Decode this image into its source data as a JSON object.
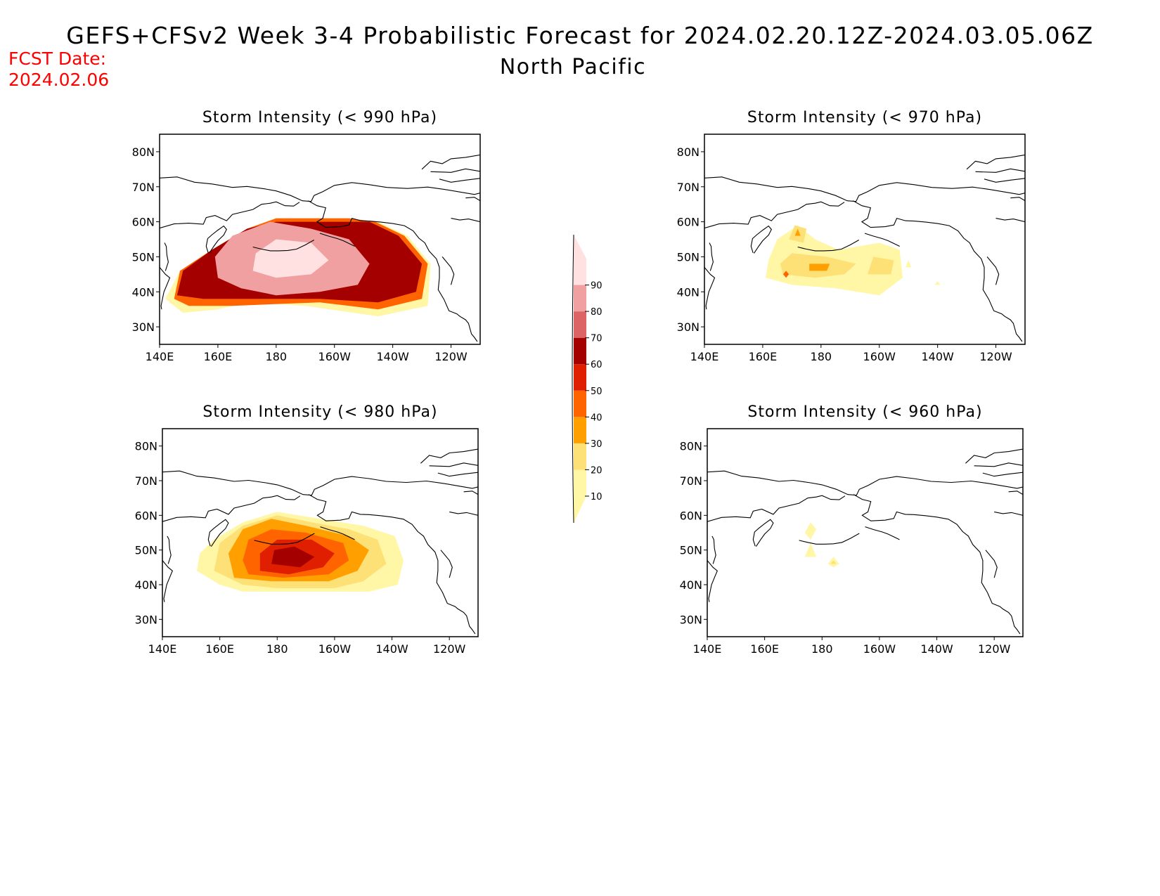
{
  "header": {
    "title": "GEFS+CFSv2 Week 3-4 Probabilistic Forecast for 2024.02.20.12Z-2024.03.05.06Z",
    "subtitle": "North Pacific",
    "fcst_label": "FCST Date:",
    "fcst_date": "2024.02.06"
  },
  "colorbar": {
    "levels": [
      "10",
      "20",
      "30",
      "40",
      "50",
      "60",
      "70",
      "80",
      "90"
    ],
    "colors": [
      "#fff6a6",
      "#fde076",
      "#ffa000",
      "#ff6400",
      "#e01e00",
      "#a50000",
      "#dc6464",
      "#f0a0a0",
      "#ffe1e1"
    ]
  },
  "panels": [
    {
      "id": "p990",
      "title": "Storm Intensity (< 990 hPa)",
      "lat_labels": [
        "80N",
        "70N",
        "60N",
        "50N",
        "40N",
        "30N"
      ],
      "lon_labels": [
        "140E",
        "160E",
        "180",
        "160W",
        "140W",
        "120W"
      ],
      "probability_fields": [
        {
          "level": 0,
          "polygons": [
            [
              [
                142,
                38
              ],
              [
                148,
                34
              ],
              [
                160,
                35
              ],
              [
                170,
                37
              ],
              [
                190,
                36
              ],
              [
                215,
                33
              ],
              [
                232,
                36
              ],
              [
                233,
                48
              ],
              [
                225,
                56
              ],
              [
                215,
                60
              ],
              [
                200,
                60
              ],
              [
                180,
                61
              ],
              [
                170,
                58
              ],
              [
                158,
                52
              ],
              [
                147,
                46
              ]
            ]
          ]
        },
        {
          "level": 3,
          "polygons": [
            [
              [
                145,
                38
              ],
              [
                150,
                36
              ],
              [
                165,
                36
              ],
              [
                195,
                37
              ],
              [
                215,
                35
              ],
              [
                230,
                38
              ],
              [
                232,
                48
              ],
              [
                224,
                56
              ],
              [
                214,
                60
              ],
              [
                205,
                61
              ],
              [
                180,
                61
              ],
              [
                170,
                58
              ],
              [
                158,
                52
              ],
              [
                147,
                46
              ]
            ]
          ]
        },
        {
          "level": 5,
          "polygons": [
            [
              [
                146,
                39
              ],
              [
                155,
                38
              ],
              [
                170,
                38
              ],
              [
                195,
                38
              ],
              [
                215,
                37
              ],
              [
                228,
                40
              ],
              [
                230,
                48
              ],
              [
                222,
                56
              ],
              [
                212,
                60
              ],
              [
                200,
                60
              ],
              [
                180,
                60
              ],
              [
                170,
                58
              ],
              [
                158,
                52
              ],
              [
                148,
                46
              ]
            ]
          ]
        },
        {
          "level": 7,
          "polygons": [
            [
              [
                160,
                44
              ],
              [
                168,
                41
              ],
              [
                180,
                39
              ],
              [
                195,
                40
              ],
              [
                208,
                42
              ],
              [
                212,
                48
              ],
              [
                205,
                55
              ],
              [
                192,
                58
              ],
              [
                178,
                60
              ],
              [
                165,
                56
              ],
              [
                159,
                50
              ]
            ]
          ]
        },
        {
          "level": 8,
          "polygons": [
            [
              [
                172,
                46
              ],
              [
                180,
                44
              ],
              [
                192,
                45
              ],
              [
                198,
                49
              ],
              [
                192,
                54
              ],
              [
                180,
                55
              ],
              [
                173,
                51
              ]
            ]
          ]
        }
      ]
    },
    {
      "id": "p970",
      "title": "Storm Intensity (< 970 hPa)",
      "lat_labels": [
        "80N",
        "70N",
        "60N",
        "50N",
        "40N",
        "30N"
      ],
      "lon_labels": [
        "140E",
        "160E",
        "180",
        "160W",
        "140W",
        "120W"
      ],
      "probability_fields": [
        {
          "level": 0,
          "polygons": [
            [
              [
                161,
                44
              ],
              [
                170,
                42
              ],
              [
                185,
                41
              ],
              [
                200,
                39
              ],
              [
                208,
                44
              ],
              [
                207,
                52
              ],
              [
                200,
                54
              ],
              [
                186,
                52
              ],
              [
                178,
                55
              ],
              [
                172,
                59
              ],
              [
                165,
                55
              ],
              [
                162,
                49
              ]
            ],
            [
              [
                209,
                47
              ],
              [
                210,
                49
              ],
              [
                211,
                47
              ]
            ],
            [
              [
                219,
                42
              ],
              [
                220,
                43
              ],
              [
                221,
                42
              ]
            ]
          ]
        },
        {
          "level": 1,
          "polygons": [
            [
              [
                167,
                45
              ],
              [
                178,
                44
              ],
              [
                188,
                45
              ],
              [
                192,
                48
              ],
              [
                182,
                50
              ],
              [
                170,
                51
              ],
              [
                166,
                48
              ]
            ],
            [
              [
                196,
                45
              ],
              [
                204,
                45
              ],
              [
                205,
                49
              ],
              [
                198,
                50
              ]
            ],
            [
              [
                169,
                55
              ],
              [
                174,
                54
              ],
              [
                175,
                58
              ],
              [
                171,
                59
              ]
            ]
          ]
        },
        {
          "level": 2,
          "polygons": [
            [
              [
                176,
                46
              ],
              [
                182,
                46
              ],
              [
                183,
                48
              ],
              [
                176,
                48
              ]
            ],
            [
              [
                171,
                56
              ],
              [
                173,
                56
              ],
              [
                172,
                58
              ]
            ]
          ]
        },
        {
          "level": 3,
          "polygons": [
            [
              [
                168,
                44
              ],
              [
                169,
                45
              ],
              [
                168,
                46
              ],
              [
                167,
                45
              ]
            ]
          ]
        }
      ]
    },
    {
      "id": "p980",
      "title": "Storm Intensity (< 980 hPa)",
      "lat_labels": [
        "80N",
        "70N",
        "60N",
        "50N",
        "40N",
        "30N"
      ],
      "lon_labels": [
        "140E",
        "160E",
        "180",
        "160W",
        "140W",
        "120W"
      ],
      "probability_fields": [
        {
          "level": 0,
          "polygons": [
            [
              [
                152,
                44
              ],
              [
                160,
                40
              ],
              [
                168,
                38
              ],
              [
                180,
                38
              ],
              [
                200,
                38
              ],
              [
                212,
                38
              ],
              [
                222,
                40
              ],
              [
                224,
                47
              ],
              [
                221,
                54
              ],
              [
                210,
                57
              ],
              [
                195,
                59
              ],
              [
                180,
                61
              ],
              [
                168,
                58
              ],
              [
                158,
                53
              ],
              [
                153,
                49
              ]
            ]
          ]
        },
        {
          "level": 1,
          "polygons": [
            [
              [
                158,
                44
              ],
              [
                168,
                40
              ],
              [
                180,
                39
              ],
              [
                200,
                39
              ],
              [
                210,
                41
              ],
              [
                218,
                46
              ],
              [
                215,
                53
              ],
              [
                205,
                56
              ],
              [
                192,
                58
              ],
              [
                180,
                60
              ],
              [
                168,
                57
              ],
              [
                160,
                52
              ]
            ]
          ]
        },
        {
          "level": 2,
          "polygons": [
            [
              [
                165,
                42
              ],
              [
                178,
                41
              ],
              [
                198,
                41
              ],
              [
                208,
                44
              ],
              [
                212,
                50
              ],
              [
                205,
                54
              ],
              [
                190,
                57
              ],
              [
                178,
                59
              ],
              [
                168,
                56
              ],
              [
                163,
                49
              ]
            ]
          ]
        },
        {
          "level": 3,
          "polygons": [
            [
              [
                170,
                43
              ],
              [
                182,
                42
              ],
              [
                198,
                43
              ],
              [
                205,
                47
              ],
              [
                203,
                52
              ],
              [
                190,
                55
              ],
              [
                178,
                56
              ],
              [
                170,
                53
              ],
              [
                168,
                47
              ]
            ]
          ]
        },
        {
          "level": 4,
          "polygons": [
            [
              [
                174,
                44
              ],
              [
                184,
                43
              ],
              [
                196,
                45
              ],
              [
                200,
                49
              ],
              [
                192,
                53
              ],
              [
                180,
                53
              ],
              [
                174,
                49
              ]
            ]
          ]
        },
        {
          "level": 5,
          "polygons": [
            [
              [
                178,
                46
              ],
              [
                188,
                45
              ],
              [
                193,
                48
              ],
              [
                186,
                51
              ],
              [
                179,
                50
              ]
            ]
          ]
        }
      ]
    },
    {
      "id": "p960",
      "title": "Storm Intensity (< 960 hPa)",
      "lat_labels": [
        "80N",
        "70N",
        "60N",
        "50N",
        "40N",
        "30N"
      ],
      "lon_labels": [
        "140E",
        "160E",
        "180",
        "160W",
        "140W",
        "120W"
      ],
      "probability_fields": [
        {
          "level": 0,
          "polygons": [
            [
              [
                174,
                55
              ],
              [
                176,
                58
              ],
              [
                178,
                56
              ],
              [
                176,
                53
              ]
            ],
            [
              [
                174,
                48
              ],
              [
                176,
                52
              ],
              [
                178,
                48
              ]
            ],
            [
              [
                182,
                46
              ],
              [
                184,
                48
              ],
              [
                186,
                46
              ],
              [
                184,
                45
              ]
            ]
          ]
        },
        {
          "level": 1,
          "polygons": [
            [
              [
                183,
                46
              ],
              [
                184,
                47
              ],
              [
                185,
                46
              ]
            ]
          ]
        }
      ]
    }
  ]
}
